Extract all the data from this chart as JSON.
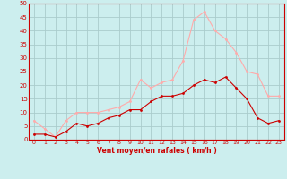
{
  "x": [
    0,
    1,
    2,
    3,
    4,
    5,
    6,
    7,
    8,
    9,
    10,
    11,
    12,
    13,
    14,
    15,
    16,
    17,
    18,
    19,
    20,
    21,
    22,
    23
  ],
  "wind_mean": [
    2,
    2,
    1,
    3,
    6,
    5,
    6,
    8,
    9,
    11,
    11,
    14,
    16,
    16,
    17,
    20,
    22,
    21,
    23,
    19,
    15,
    8,
    6,
    7
  ],
  "wind_gust": [
    7,
    4,
    1,
    7,
    10,
    10,
    10,
    11,
    12,
    14,
    22,
    19,
    21,
    22,
    29,
    44,
    47,
    40,
    37,
    32,
    25,
    24,
    16,
    16
  ],
  "mean_color": "#cc0000",
  "gust_color": "#ffaaaa",
  "background_color": "#cceeee",
  "grid_color": "#aacccc",
  "xlabel": "Vent moyen/en rafales ( km/h )",
  "xlim": [
    -0.5,
    23.5
  ],
  "ylim": [
    0,
    50
  ],
  "yticks": [
    0,
    5,
    10,
    15,
    20,
    25,
    30,
    35,
    40,
    45,
    50
  ],
  "xticks": [
    0,
    1,
    2,
    3,
    4,
    5,
    6,
    7,
    8,
    9,
    10,
    11,
    12,
    13,
    14,
    15,
    16,
    17,
    18,
    19,
    20,
    21,
    22,
    23
  ]
}
